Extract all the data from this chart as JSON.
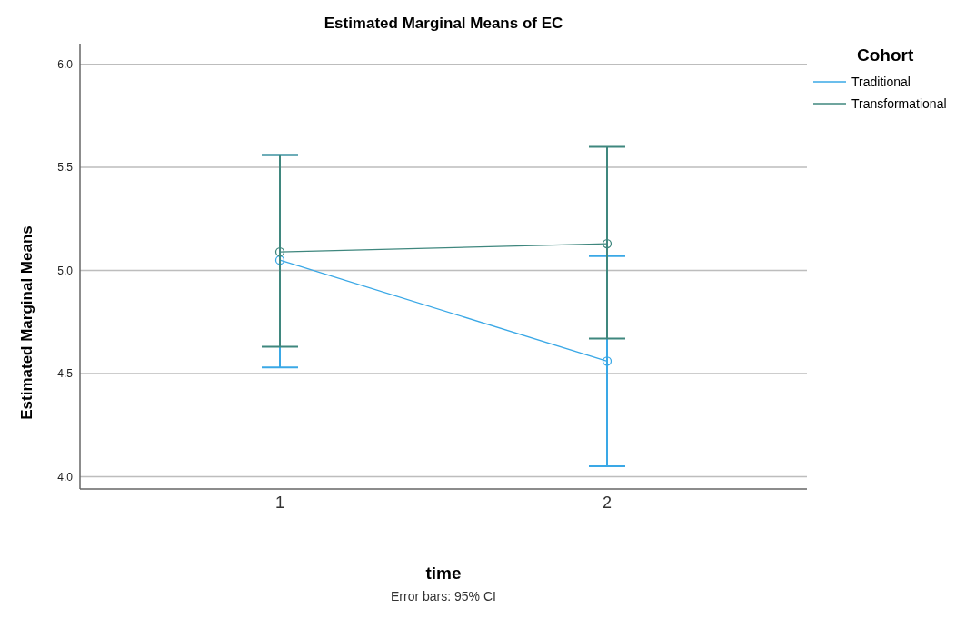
{
  "chart_data": {
    "type": "line",
    "title": "Estimated Marginal Means of EC",
    "xlabel": "time",
    "ylabel": "Estimated Marginal Means",
    "legend_title": "Cohort",
    "categories": [
      "1",
      "2"
    ],
    "series": [
      {
        "name": "Traditional",
        "color": "#3aa8e6",
        "values": [
          5.05,
          4.56
        ],
        "errors": [
          [
            4.53,
            5.56
          ],
          [
            4.05,
            5.07
          ]
        ]
      },
      {
        "name": "Transformational",
        "color": "#3f877e",
        "values": [
          5.09,
          5.13
        ],
        "errors": [
          [
            4.63,
            5.56
          ],
          [
            4.67,
            5.6
          ]
        ]
      }
    ],
    "ylim": [
      3.94,
      6.1
    ],
    "yticks": [
      {
        "value": 4,
        "label": "4.0"
      },
      {
        "value": 4.5,
        "label": "4.5"
      },
      {
        "value": 5,
        "label": "5.0"
      },
      {
        "value": 5.5,
        "label": "5.5"
      },
      {
        "value": 6,
        "label": "6.0"
      }
    ],
    "grid": "y",
    "legend": "top right",
    "marker": "circle",
    "line_style": "solid",
    "annotations": [
      "Error bars: 95% CI"
    ]
  }
}
